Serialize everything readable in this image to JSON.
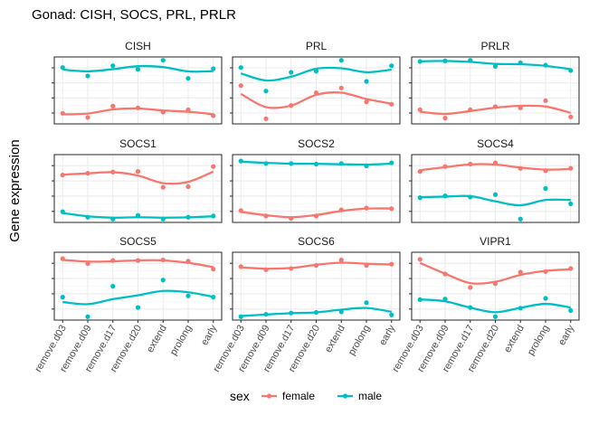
{
  "chart_data": {
    "type": "line",
    "title": "Gonad: CISH, SOCS, PRL, PRLR",
    "ylabel": "Gene expression",
    "xlabel": "",
    "categories": [
      "remove.d03",
      "remove.d09",
      "remove.d17",
      "remove.d20",
      "extend",
      "prolong",
      "early"
    ],
    "legend": {
      "title": "sex",
      "position": "bottom",
      "entries": [
        {
          "name": "female",
          "color": "#F8766D"
        },
        {
          "name": "male",
          "color": "#00BFC4"
        }
      ]
    },
    "grid": true,
    "facets": [
      {
        "label": "CISH",
        "ylim": [
          0,
          1
        ],
        "series": [
          {
            "name": "female",
            "values": [
              0.12,
              0.05,
              0.24,
              0.21,
              0.14,
              0.18,
              0.08
            ]
          },
          {
            "name": "male",
            "values": [
              0.88,
              0.74,
              0.91,
              0.85,
              1.0,
              0.7,
              0.86
            ]
          }
        ]
      },
      {
        "label": "PRL",
        "ylim": [
          0,
          1
        ],
        "series": [
          {
            "name": "female",
            "values": [
              0.58,
              0.03,
              0.25,
              0.46,
              0.54,
              0.31,
              0.27
            ]
          },
          {
            "name": "male",
            "values": [
              0.88,
              0.49,
              0.8,
              0.82,
              1.0,
              0.65,
              0.91
            ]
          }
        ]
      },
      {
        "label": "PRLR",
        "ylim": [
          0,
          1
        ],
        "series": [
          {
            "name": "female",
            "values": [
              0.18,
              0.04,
              0.18,
              0.23,
              0.21,
              0.33,
              0.06
            ]
          },
          {
            "name": "male",
            "values": [
              0.98,
              0.99,
              1.0,
              0.9,
              0.96,
              0.92,
              0.83
            ]
          }
        ]
      },
      {
        "label": "SOCS1",
        "ylim": [
          0,
          1
        ],
        "series": [
          {
            "name": "female",
            "values": [
              0.72,
              0.75,
              0.77,
              0.78,
              0.52,
              0.53,
              0.86
            ]
          },
          {
            "name": "male",
            "values": [
              0.12,
              0.03,
              0.0,
              0.06,
              0.0,
              0.03,
              0.05
            ]
          }
        ]
      },
      {
        "label": "SOCS2",
        "ylim": [
          0,
          1
        ],
        "series": [
          {
            "name": "female",
            "values": [
              0.14,
              0.05,
              0.01,
              0.05,
              0.15,
              0.18,
              0.17
            ]
          },
          {
            "name": "male",
            "values": [
              0.95,
              0.91,
              0.91,
              0.9,
              0.91,
              0.87,
              0.92
            ]
          }
        ]
      },
      {
        "label": "SOCS4",
        "ylim": [
          0,
          1
        ],
        "series": [
          {
            "name": "female",
            "values": [
              0.78,
              0.86,
              0.9,
              0.92,
              0.83,
              0.79,
              0.83
            ]
          },
          {
            "name": "male",
            "values": [
              0.35,
              0.38,
              0.36,
              0.4,
              0.0,
              0.5,
              0.25
            ]
          }
        ]
      },
      {
        "label": "SOCS5",
        "ylim": [
          0,
          1
        ],
        "series": [
          {
            "name": "female",
            "values": [
              0.95,
              0.87,
              0.92,
              0.92,
              0.93,
              0.91,
              0.78
            ]
          },
          {
            "name": "male",
            "values": [
              0.32,
              0.0,
              0.5,
              0.15,
              0.6,
              0.34,
              0.32
            ]
          }
        ]
      },
      {
        "label": "SOCS6",
        "ylim": [
          0,
          1
        ],
        "series": [
          {
            "name": "female",
            "values": [
              0.82,
              0.77,
              0.79,
              0.84,
              0.93,
              0.84,
              0.86
            ]
          },
          {
            "name": "male",
            "values": [
              0.0,
              0.04,
              0.06,
              0.07,
              0.08,
              0.23,
              0.03
            ]
          }
        ]
      },
      {
        "label": "VIPR1",
        "ylim": [
          0,
          1
        ],
        "series": [
          {
            "name": "female",
            "values": [
              0.94,
              0.7,
              0.48,
              0.54,
              0.73,
              0.74,
              0.79
            ]
          },
          {
            "name": "male",
            "values": [
              0.28,
              0.29,
              0.15,
              0.0,
              0.14,
              0.3,
              0.1
            ]
          }
        ]
      }
    ]
  }
}
